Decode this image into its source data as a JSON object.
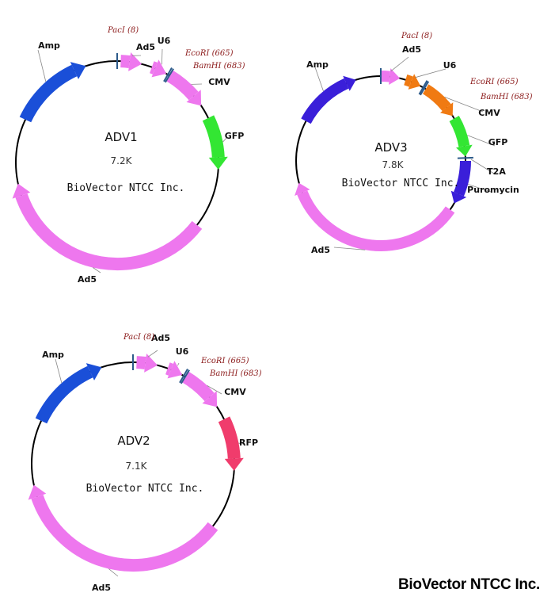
{
  "company_footer": "BioVector NTCC Inc.",
  "colors": {
    "amp": "#1a4fd8",
    "ad5": "#ee77ee",
    "gfp": "#33e633",
    "rfp": "#f03c6c",
    "u6_orange": "#f07a12",
    "puromycin": "#3a1fd9",
    "backbone": "#000000",
    "site_text": "#8b1a1a"
  },
  "maps": [
    {
      "id": "adv1",
      "name": "ADV1",
      "size": "7.2K",
      "company": "BioVector NTCC Inc.",
      "features": [
        {
          "label": "Amp",
          "color": "amp",
          "icon": "arrow-icon"
        },
        {
          "label": "Ad5",
          "color": "ad5",
          "icon": "arrow-icon"
        },
        {
          "label": "U6",
          "color": "ad5",
          "icon": "arrow-icon"
        },
        {
          "label": "CMV",
          "color": "ad5",
          "icon": "arrow-icon"
        },
        {
          "label": "GFP",
          "color": "gfp",
          "icon": "arrow-icon"
        },
        {
          "label": "Ad5",
          "color": "ad5",
          "icon": "arrow-icon"
        }
      ],
      "sites": [
        {
          "label": "PacI (8)"
        },
        {
          "label": "EcoRI (665)"
        },
        {
          "label": "BamHI (683)"
        }
      ]
    },
    {
      "id": "adv3",
      "name": "ADV3",
      "size": "7.8K",
      "company": "BioVector NTCC Inc.",
      "features": [
        {
          "label": "Amp",
          "color": "puromycin",
          "icon": "arrow-icon"
        },
        {
          "label": "Ad5",
          "color": "ad5",
          "icon": "arrow-icon"
        },
        {
          "label": "U6",
          "color": "u6_orange",
          "icon": "arrow-icon"
        },
        {
          "label": "CMV",
          "color": "u6_orange",
          "icon": "arrow-icon"
        },
        {
          "label": "GFP",
          "color": "gfp",
          "icon": "arrow-icon"
        },
        {
          "label": "T2A",
          "color": "puromycin",
          "icon": "marker-icon"
        },
        {
          "label": "Puromycin",
          "color": "puromycin",
          "icon": "arrow-icon"
        },
        {
          "label": "Ad5",
          "color": "ad5",
          "icon": "arrow-icon"
        }
      ],
      "sites": [
        {
          "label": "PacI (8)"
        },
        {
          "label": "EcoRI (665)"
        },
        {
          "label": "BamHI (683)"
        }
      ]
    },
    {
      "id": "adv2",
      "name": "ADV2",
      "size": "7.1K",
      "company": "BioVector NTCC Inc.",
      "features": [
        {
          "label": "Amp",
          "color": "amp",
          "icon": "arrow-icon"
        },
        {
          "label": "Ad5",
          "color": "ad5",
          "icon": "arrow-icon"
        },
        {
          "label": "U6",
          "color": "ad5",
          "icon": "arrow-icon"
        },
        {
          "label": "CMV",
          "color": "ad5",
          "icon": "arrow-icon"
        },
        {
          "label": "RFP",
          "color": "rfp",
          "icon": "arrow-icon"
        },
        {
          "label": "Ad5",
          "color": "ad5",
          "icon": "arrow-icon"
        }
      ],
      "sites": [
        {
          "label": "PacI (8)"
        },
        {
          "label": "EcoRI (665)"
        },
        {
          "label": "BamHI (683)"
        }
      ]
    }
  ]
}
